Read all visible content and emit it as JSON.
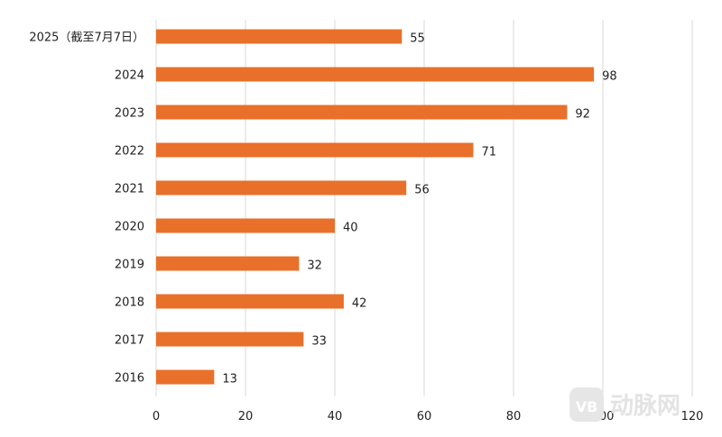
{
  "chart_data": {
    "type": "bar",
    "orientation": "horizontal",
    "categories": [
      "2025（截至7月7日）",
      "2024",
      "2023",
      "2022",
      "2021",
      "2020",
      "2019",
      "2018",
      "2017",
      "2016"
    ],
    "values": [
      55,
      98,
      92,
      71,
      56,
      40,
      32,
      42,
      33,
      13
    ],
    "xlim": [
      0,
      120
    ],
    "xticks": [
      0,
      20,
      40,
      60,
      80,
      100,
      120
    ],
    "xlabel": "",
    "ylabel": "",
    "title": "",
    "grid": true,
    "bar_color": "#E8702A",
    "data_labels": true
  },
  "watermark": {
    "logo_text": "VB",
    "text": "动脉网"
  }
}
